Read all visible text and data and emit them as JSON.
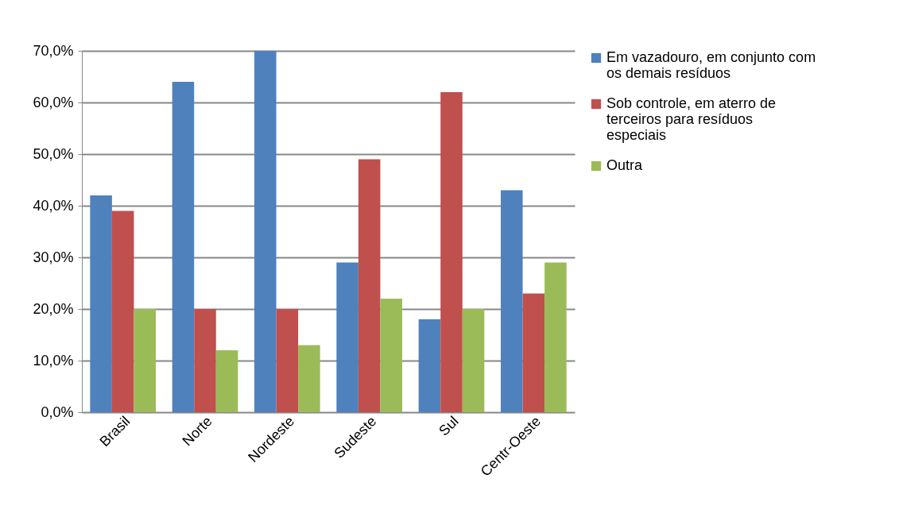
{
  "chart_data": {
    "type": "bar",
    "categories": [
      "Brasil",
      "Norte",
      "Nordeste",
      "Sudeste",
      "Sul",
      "Centr-Oeste"
    ],
    "series": [
      {
        "name": "Em vazadouro, em conjunto com os demais resíduos",
        "color": "#4f81bd",
        "values": [
          42,
          64,
          70,
          29,
          18,
          43
        ]
      },
      {
        "name": "Sob controle, em aterro de terceiros para resíduos especiais",
        "color": "#c0504d",
        "values": [
          39,
          20,
          20,
          49,
          62,
          23
        ]
      },
      {
        "name": "Outra",
        "color": "#9bbb59",
        "values": [
          20,
          12,
          13,
          22,
          20,
          29
        ]
      }
    ],
    "ylim": [
      0,
      70
    ],
    "yticks": [
      {
        "value": 0,
        "label": "0,0%"
      },
      {
        "value": 10,
        "label": "10,0%"
      },
      {
        "value": 20,
        "label": "20,0%"
      },
      {
        "value": 30,
        "label": "30,0%"
      },
      {
        "value": 40,
        "label": "40,0%"
      },
      {
        "value": 50,
        "label": "50,0%"
      },
      {
        "value": 60,
        "label": "60,0%"
      },
      {
        "value": 70,
        "label": "70,0%"
      }
    ],
    "grid": "y",
    "legend": "right"
  }
}
